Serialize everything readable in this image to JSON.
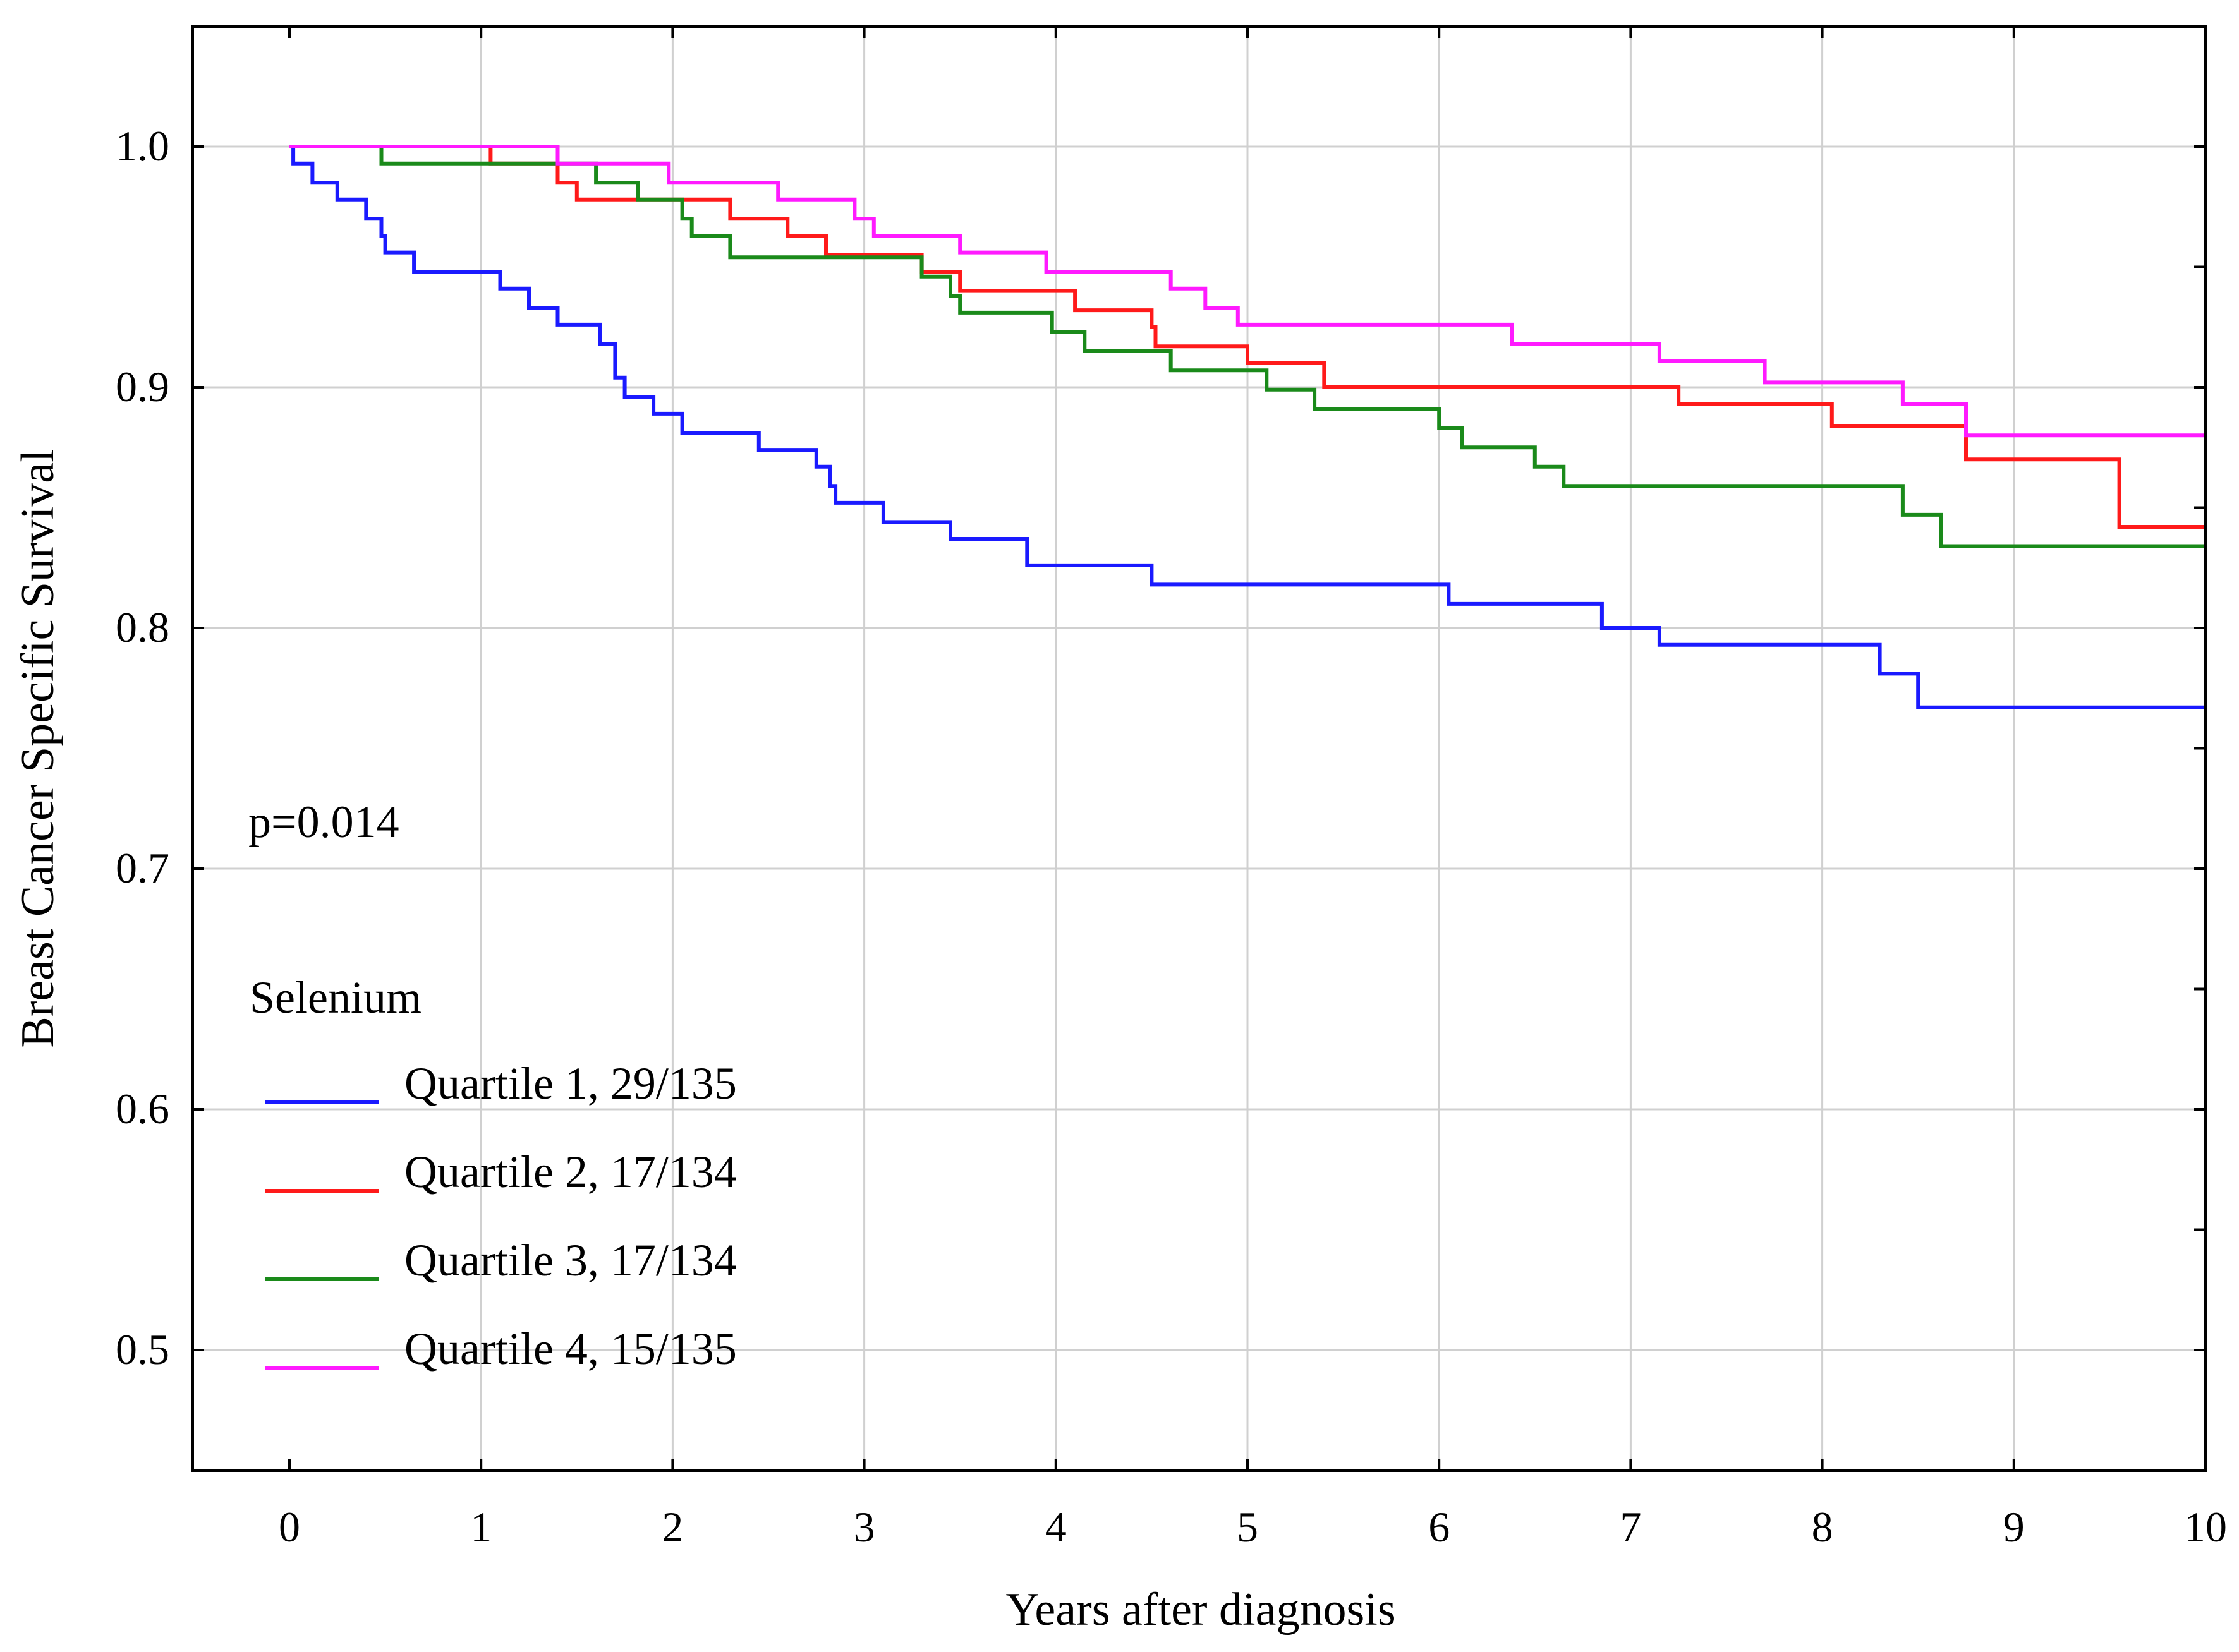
{
  "chart_data": {
    "type": "line",
    "style": "step",
    "title": "",
    "xlabel": "Years after diagnosis",
    "ylabel": "Breast Cancer Specific Survival",
    "xlim": [
      -0.5,
      10
    ],
    "ylim": [
      0.45,
      1.05
    ],
    "xticks": [
      "0",
      "1",
      "2",
      "3",
      "4",
      "5",
      "6",
      "7",
      "8",
      "9",
      "10"
    ],
    "yticks": [
      "0.5",
      "0.6",
      "0.7",
      "0.8",
      "0.9",
      "1.0"
    ],
    "grid": true,
    "annotation": "p=0.014",
    "legend": {
      "title": "Selenium",
      "position": "lower-left"
    },
    "series": [
      {
        "name": "Quartile 1, 29/135",
        "color": "#1a1aff",
        "points": [
          [
            0,
            1.0
          ],
          [
            0.02,
            0.993
          ],
          [
            0.12,
            0.985
          ],
          [
            0.25,
            0.978
          ],
          [
            0.4,
            0.97
          ],
          [
            0.48,
            0.963
          ],
          [
            0.5,
            0.956
          ],
          [
            0.65,
            0.948
          ],
          [
            1.1,
            0.941
          ],
          [
            1.25,
            0.933
          ],
          [
            1.4,
            0.926
          ],
          [
            1.62,
            0.918
          ],
          [
            1.7,
            0.904
          ],
          [
            1.75,
            0.896
          ],
          [
            1.9,
            0.889
          ],
          [
            2.05,
            0.881
          ],
          [
            2.45,
            0.874
          ],
          [
            2.75,
            0.867
          ],
          [
            2.82,
            0.859
          ],
          [
            2.85,
            0.852
          ],
          [
            2.98,
            0.852
          ],
          [
            3.1,
            0.844
          ],
          [
            3.45,
            0.837
          ],
          [
            3.85,
            0.826
          ],
          [
            4.5,
            0.818
          ],
          [
            6.05,
            0.81
          ],
          [
            6.85,
            0.8
          ],
          [
            7.15,
            0.793
          ],
          [
            8.3,
            0.781
          ],
          [
            8.5,
            0.767
          ],
          [
            10,
            0.767
          ]
        ]
      },
      {
        "name": "Quartile 2, 17/134",
        "color": "#ff1a1a",
        "points": [
          [
            0,
            1.0
          ],
          [
            1.05,
            0.993
          ],
          [
            1.4,
            0.985
          ],
          [
            1.5,
            0.978
          ],
          [
            2.3,
            0.97
          ],
          [
            2.6,
            0.963
          ],
          [
            2.8,
            0.955
          ],
          [
            3.3,
            0.948
          ],
          [
            3.5,
            0.94
          ],
          [
            4.1,
            0.932
          ],
          [
            4.5,
            0.925
          ],
          [
            4.52,
            0.917
          ],
          [
            5.0,
            0.91
          ],
          [
            5.4,
            0.9
          ],
          [
            7.25,
            0.893
          ],
          [
            8.05,
            0.884
          ],
          [
            8.75,
            0.87
          ],
          [
            9.55,
            0.842
          ],
          [
            10,
            0.842
          ]
        ]
      },
      {
        "name": "Quartile 3, 17/134",
        "color": "#1a8a1a",
        "points": [
          [
            0,
            1.0
          ],
          [
            0.48,
            0.993
          ],
          [
            1.6,
            0.985
          ],
          [
            1.82,
            0.978
          ],
          [
            2.05,
            0.97
          ],
          [
            2.1,
            0.963
          ],
          [
            2.3,
            0.954
          ],
          [
            3.3,
            0.946
          ],
          [
            3.45,
            0.938
          ],
          [
            3.5,
            0.931
          ],
          [
            3.98,
            0.923
          ],
          [
            4.15,
            0.915
          ],
          [
            4.6,
            0.907
          ],
          [
            5.1,
            0.899
          ],
          [
            5.35,
            0.891
          ],
          [
            6.0,
            0.883
          ],
          [
            6.12,
            0.875
          ],
          [
            6.5,
            0.867
          ],
          [
            6.65,
            0.859
          ],
          [
            8.42,
            0.847
          ],
          [
            8.62,
            0.834
          ],
          [
            10,
            0.834
          ]
        ]
      },
      {
        "name": "Quartile 4, 15/135",
        "color": "#ff1aff",
        "points": [
          [
            0,
            1.0
          ],
          [
            1.4,
            0.993
          ],
          [
            1.98,
            0.985
          ],
          [
            2.55,
            0.978
          ],
          [
            2.95,
            0.97
          ],
          [
            3.05,
            0.963
          ],
          [
            3.5,
            0.956
          ],
          [
            3.95,
            0.948
          ],
          [
            4.6,
            0.941
          ],
          [
            4.78,
            0.933
          ],
          [
            4.95,
            0.926
          ],
          [
            6.38,
            0.918
          ],
          [
            7.15,
            0.911
          ],
          [
            7.7,
            0.902
          ],
          [
            8.42,
            0.893
          ],
          [
            8.75,
            0.88
          ],
          [
            10,
            0.88
          ]
        ]
      }
    ]
  }
}
